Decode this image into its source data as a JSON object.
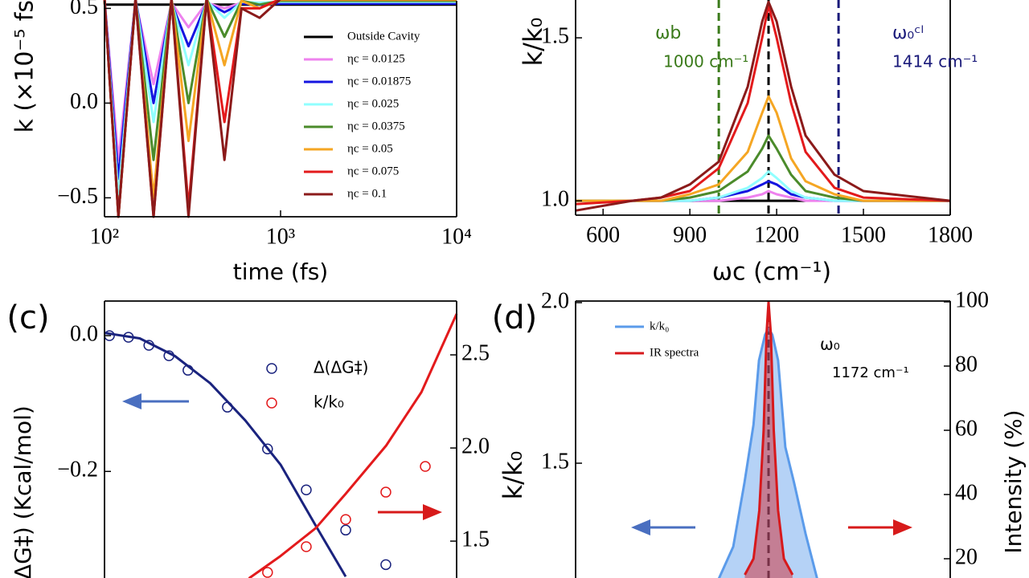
{
  "chart_data": [
    {
      "type": "line",
      "xscale": "log",
      "xlim": [
        100,
        10000
      ],
      "ylim": [
        -0.6,
        0.54
      ],
      "xticks": [
        {
          "value": 100,
          "label": "10²"
        },
        {
          "value": 1000,
          "label": "10³"
        },
        {
          "value": 10000,
          "label": "10⁴"
        }
      ],
      "yticks": [
        {
          "value": -0.5,
          "label": "−0.5"
        },
        {
          "value": 0,
          "label": "0.0"
        },
        0.5
      ],
      "xlabel": "time (fs)",
      "ylabel": "k (×10⁻⁵ fs",
      "x": [
        100,
        120,
        150,
        190,
        240,
        300,
        380,
        480,
        600,
        760,
        1000,
        2000,
        10000
      ],
      "series": [
        {
          "name": "Outside Cavity",
          "color": "#000000",
          "values": [
            0.52,
            0.52,
            0.52,
            0.52,
            0.52,
            0.52,
            0.52,
            0.52,
            0.52,
            0.52,
            0.52,
            0.52,
            0.52
          ]
        },
        {
          "name": "ηc = 0.0125",
          "color": "#ee82ee",
          "values": [
            0.55,
            -0.3,
            0.54,
            0.1,
            0.53,
            0.4,
            0.53,
            0.5,
            0.53,
            0.53,
            0.53,
            0.53,
            0.53
          ]
        },
        {
          "name": "ηc = 0.01875",
          "color": "#1515e0",
          "values": [
            0.55,
            -0.4,
            0.55,
            0.0,
            0.53,
            0.3,
            0.53,
            0.48,
            0.525,
            0.52,
            0.525,
            0.525,
            0.525
          ]
        },
        {
          "name": "ηc = 0.025",
          "color": "#90ffff",
          "values": [
            0.55,
            -0.5,
            0.55,
            -0.1,
            0.54,
            0.2,
            0.54,
            0.45,
            0.535,
            0.53,
            0.535,
            0.535,
            0.535
          ]
        },
        {
          "name": "ηc = 0.0375",
          "color": "#4b8b2b",
          "values": [
            0.55,
            -0.6,
            0.55,
            -0.3,
            0.55,
            0.0,
            0.55,
            0.35,
            0.54,
            0.52,
            0.54,
            0.54,
            0.54
          ]
        },
        {
          "name": "ηc = 0.05",
          "color": "#f5a623",
          "values": [
            0.55,
            -0.6,
            0.55,
            -0.5,
            0.55,
            -0.2,
            0.55,
            0.2,
            0.54,
            0.5,
            0.545,
            0.545,
            0.545
          ]
        },
        {
          "name": "ηc = 0.075",
          "color": "#e31a1c",
          "values": [
            0.55,
            -0.6,
            0.55,
            -0.6,
            0.55,
            -0.55,
            0.55,
            -0.1,
            0.5,
            0.5,
            0.55,
            0.55,
            0.55
          ]
        },
        {
          "name": "ηc = 0.1",
          "color": "#8b1a1a",
          "values": [
            0.55,
            -0.6,
            0.55,
            -0.6,
            0.55,
            -0.6,
            0.55,
            -0.3,
            0.5,
            0.45,
            0.55,
            0.55,
            0.55
          ]
        }
      ]
    },
    {
      "type": "line",
      "xlim": [
        505,
        1800
      ],
      "ylim": [
        0.956,
        1.616
      ],
      "xticks": [
        600,
        900,
        1200,
        1500,
        1800
      ],
      "yticks": [
        {
          "value": 1,
          "label": "1.0"
        },
        1.5
      ],
      "xlabel": "ωc (cm⁻¹)",
      "ylabel": "k/k₀",
      "x": [
        505,
        700,
        800,
        900,
        1000,
        1100,
        1150,
        1172,
        1200,
        1250,
        1300,
        1400,
        1500,
        1800
      ],
      "series": [
        {
          "color": "#000000",
          "values": [
            null,
            null,
            null,
            1.0,
            1.0,
            1.0,
            1.0,
            1.0,
            1.0,
            1.0,
            1.0,
            null,
            null,
            null
          ]
        },
        {
          "color": "#ee82ee",
          "values": [
            1.0,
            1.0,
            1.0,
            1.0,
            1.0,
            1.01,
            1.02,
            1.03,
            1.02,
            1.01,
            1.0,
            1.0,
            1.0,
            1.0
          ]
        },
        {
          "color": "#1515e0",
          "values": [
            1.0,
            1.0,
            1.0,
            1.0,
            1.01,
            1.03,
            1.05,
            1.06,
            1.05,
            1.02,
            1.01,
            1.0,
            1.0,
            1.0
          ]
        },
        {
          "color": "#90ffff",
          "values": [
            1.0,
            1.0,
            1.0,
            1.0,
            1.01,
            1.04,
            1.07,
            1.09,
            1.07,
            1.03,
            1.01,
            1.0,
            1.0,
            1.0
          ]
        },
        {
          "color": "#4b8b2b",
          "values": [
            1.0,
            1.0,
            1.0,
            1.01,
            1.03,
            1.09,
            1.16,
            1.2,
            1.16,
            1.08,
            1.03,
            1.01,
            1.0,
            1.0
          ]
        },
        {
          "color": "#f5a623",
          "values": [
            1.0,
            1.0,
            1.0,
            1.02,
            1.05,
            1.15,
            1.27,
            1.32,
            1.27,
            1.13,
            1.06,
            1.02,
            1.0,
            1.0
          ]
        },
        {
          "color": "#e31a1c",
          "values": [
            0.99,
            1.0,
            1.01,
            1.03,
            1.1,
            1.3,
            1.5,
            1.6,
            1.5,
            1.3,
            1.15,
            1.04,
            1.01,
            1.0
          ]
        },
        {
          "color": "#8b1a1a",
          "values": [
            0.97,
            1.0,
            1.01,
            1.05,
            1.12,
            1.35,
            1.55,
            1.61,
            1.55,
            1.35,
            1.2,
            1.08,
            1.03,
            1.0
          ]
        }
      ],
      "vlines": [
        {
          "x": 1000,
          "color": "#3a7a1a"
        },
        {
          "x": 1414,
          "color": "#1a1a7a"
        },
        {
          "x": 1172,
          "color": "#000000"
        }
      ],
      "annotations": [
        {
          "text": "ωb",
          "color": "#3a7a1a"
        },
        {
          "text": "1000 cm⁻¹",
          "color": "#3a7a1a"
        },
        {
          "text": "ω₀ᶜˡ",
          "color": "#1a1a7a"
        },
        {
          "text": "1414 cm⁻¹",
          "color": "#1a1a7a"
        }
      ]
    },
    {
      "type": "line",
      "panel_label": "(c)",
      "xlim": [
        0,
        0.1
      ],
      "ylim": [
        -0.357,
        0.051
      ],
      "y2lim": [
        1.302,
        2.789
      ],
      "yticks": [
        {
          "value": -0.2,
          "label": "−0.2"
        },
        {
          "value": 0,
          "label": "0.0"
        }
      ],
      "y2ticks": [
        1.5,
        {
          "value": 2,
          "label": "2.0"
        },
        2.5
      ],
      "ylabel": "ΔG‡) (Kcal/mol)",
      "y2label": "k/k₀",
      "series": [
        {
          "name": "Δ(ΔG‡)",
          "color": "#1a237e",
          "mode": "markers",
          "x": [
            0.0014,
            0.0068,
            0.0126,
            0.0183,
            0.0237,
            0.0349,
            0.0463,
            0.0573,
            0.0685,
            0.0799
          ],
          "values": [
            0,
            -0.0024,
            -0.0142,
            -0.0296,
            -0.0509,
            -0.1053,
            -0.1669,
            -0.2272,
            -0.2864,
            -0.3373
          ]
        },
        {
          "name": "k/k₀",
          "color": "#e31a1c",
          "mode": "markers",
          "axis": "y2",
          "x": [
            0.0463,
            0.0573,
            0.0685,
            0.0799,
            0.0911
          ],
          "values": [
            1.332,
            1.47,
            1.616,
            1.763,
            1.901
          ]
        },
        {
          "color": "#1a237e",
          "mode": "line",
          "x": [
            0,
            0.01,
            0.02,
            0.03,
            0.04,
            0.05,
            0.06,
            0.0685
          ],
          "values": [
            0.004,
            -0.004,
            -0.03,
            -0.07,
            -0.125,
            -0.19,
            -0.28,
            -0.355
          ]
        },
        {
          "color": "#e31a1c",
          "mode": "line",
          "axis": "y2",
          "x": [
            0.041,
            0.05,
            0.06,
            0.0685,
            0.08,
            0.09,
            0.1
          ],
          "values": [
            1.3,
            1.42,
            1.57,
            1.754,
            2.013,
            2.3,
            2.72
          ]
        }
      ]
    },
    {
      "type": "line",
      "panel_label": "(d)",
      "xlim": [
        505,
        1800
      ],
      "ylim": [
        1.1425,
        2.005
      ],
      "y2lim": [
        14,
        100.25
      ],
      "yticks": [
        1.5,
        {
          "value": 2,
          "label": "2.0"
        }
      ],
      "y2ticks": [
        20,
        40,
        60,
        80,
        100
      ],
      "y2label": "Intensity (%)",
      "series": [
        {
          "name": "k/k₀",
          "color": "#5b9bea",
          "fill": true,
          "x": [
            1000,
            1050,
            1089,
            1120,
            1139,
            1160,
            1172,
            1185,
            1205,
            1230,
            1260,
            1300,
            1340
          ],
          "values": [
            1.14,
            1.24,
            1.44,
            1.62,
            1.82,
            1.9,
            1.92,
            1.9,
            1.82,
            1.55,
            1.44,
            1.28,
            1.14
          ]
        },
        {
          "name": "IR spectra",
          "color": "#d7191c",
          "fill": true,
          "axis": "y2",
          "x": [
            1090,
            1120,
            1140,
            1155,
            1165,
            1172,
            1180,
            1190,
            1205,
            1225,
            1255
          ],
          "values": [
            15,
            20,
            35,
            60,
            90,
            100,
            90,
            60,
            35,
            20,
            15
          ]
        }
      ],
      "vlines": [
        {
          "x": 1172,
          "color": "#000000"
        }
      ],
      "annotations": [
        {
          "text": "ω₀",
          "color": "#000000"
        },
        {
          "text": "1172 cm⁻¹",
          "color": "#000000"
        }
      ]
    }
  ]
}
